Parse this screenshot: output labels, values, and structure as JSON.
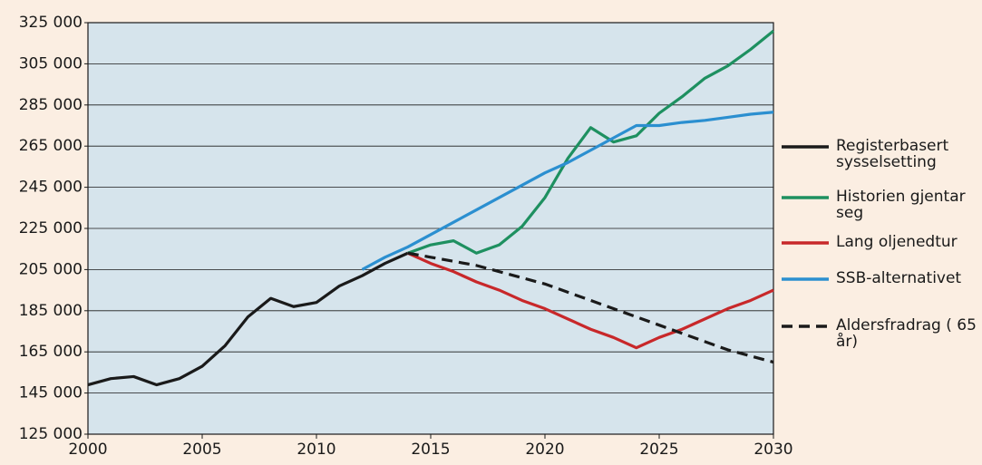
{
  "chart_data": {
    "type": "line",
    "xlim": [
      2000,
      2030
    ],
    "xticks": [
      2000,
      2005,
      2010,
      2015,
      2020,
      2025,
      2030
    ],
    "ylim": [
      125000,
      325000
    ],
    "yticks": [
      {
        "value": 125000,
        "label": "125 000"
      },
      {
        "value": 145000,
        "label": "145 000"
      },
      {
        "value": 165000,
        "label": "165 000"
      },
      {
        "value": 185000,
        "label": "185 000"
      },
      {
        "value": 205000,
        "label": "205 000"
      },
      {
        "value": 225000,
        "label": "225 000"
      },
      {
        "value": 245000,
        "label": "245 000"
      },
      {
        "value": 265000,
        "label": "265 000"
      },
      {
        "value": 285000,
        "label": "285 000"
      },
      {
        "value": 305000,
        "label": "305 000"
      },
      {
        "value": 325000,
        "label": "325 000"
      }
    ],
    "grid": true,
    "legend": "right",
    "series": [
      {
        "name": "Registerbasert sysselsetting",
        "color": "#1a1a1a",
        "style": "solid",
        "x": [
          2000,
          2001,
          2002,
          2003,
          2004,
          2005,
          2006,
          2007,
          2008,
          2009,
          2010,
          2011,
          2012,
          2013,
          2014
        ],
        "values": [
          149000,
          152000,
          153000,
          149000,
          152000,
          158000,
          168000,
          182000,
          191000,
          187000,
          189000,
          197000,
          202000,
          208000,
          213000
        ]
      },
      {
        "name": "Historien gjentar seg",
        "color": "#1e9060",
        "style": "solid",
        "x": [
          2014,
          2015,
          2016,
          2017,
          2018,
          2019,
          2020,
          2021,
          2022,
          2023,
          2024,
          2025,
          2026,
          2027,
          2028,
          2029,
          2030
        ],
        "values": [
          213000,
          217000,
          219000,
          213000,
          217000,
          226000,
          240000,
          259000,
          274000,
          267000,
          270000,
          281000,
          289000,
          298000,
          304000,
          312000,
          321000
        ]
      },
      {
        "name": "Lang oljenedtur",
        "color": "#c8282a",
        "style": "solid",
        "x": [
          2014,
          2015,
          2016,
          2017,
          2018,
          2019,
          2020,
          2021,
          2022,
          2023,
          2024,
          2025,
          2026,
          2027,
          2028,
          2029,
          2030
        ],
        "values": [
          213000,
          208000,
          204000,
          199000,
          195000,
          190000,
          186000,
          181000,
          176000,
          172000,
          167000,
          172000,
          176000,
          181000,
          186000,
          190000,
          195000
        ]
      },
      {
        "name": "SSB-alternativet",
        "color": "#2b8fd0",
        "style": "solid",
        "x": [
          2012,
          2013,
          2014,
          2015,
          2016,
          2017,
          2018,
          2019,
          2020,
          2021,
          2022,
          2023,
          2024,
          2025,
          2026,
          2027,
          2028,
          2029,
          2030
        ],
        "values": [
          205000,
          211000,
          216000,
          222000,
          228000,
          234000,
          240000,
          246000,
          252000,
          257000,
          263000,
          269000,
          275000,
          275000,
          276500,
          277500,
          279000,
          280500,
          281500
        ]
      },
      {
        "name": "Aldersfradrag ( 65 år)",
        "color": "#1a1a1a",
        "style": "dashed",
        "x": [
          2014,
          2015,
          2016,
          2017,
          2018,
          2019,
          2020,
          2021,
          2022,
          2023,
          2024,
          2025,
          2026,
          2027,
          2028,
          2029,
          2030
        ],
        "values": [
          213000,
          211000,
          209000,
          207000,
          204000,
          201000,
          198000,
          194000,
          190000,
          186000,
          182000,
          178000,
          174000,
          170000,
          166000,
          163000,
          160000
        ]
      }
    ]
  }
}
